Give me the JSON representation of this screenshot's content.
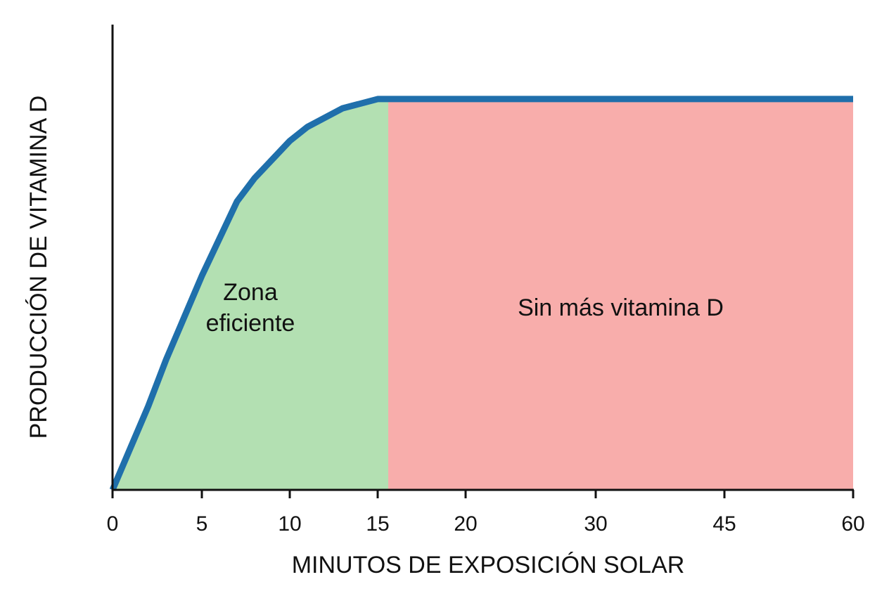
{
  "chart_data": {
    "type": "line",
    "x_label": "MINUTOS DE EXPOSICIÓN SOLAR",
    "y_label": "PRODUCCIÓN DE VITAMINA D",
    "x": [
      0,
      1,
      2,
      3,
      4,
      5,
      6,
      7,
      8,
      9,
      10,
      11,
      12,
      13,
      14,
      15,
      20,
      30,
      45,
      60
    ],
    "series": [
      {
        "color": "#1f6fab",
        "values": [
          0,
          9,
          18,
          28,
          37,
          46,
          54,
          62,
          67,
          71,
          75,
          78,
          80,
          82,
          83,
          84,
          84,
          84,
          84,
          84
        ]
      }
    ],
    "xlim": [
      0,
      60
    ],
    "xticks": [
      0,
      5,
      10,
      15,
      20,
      30,
      45,
      60
    ],
    "ylim": [
      0,
      100
    ],
    "zones": [
      {
        "label": "Zona eficiente",
        "color": "#b3e0b2",
        "x": [
          0,
          15.6
        ]
      },
      {
        "label": "Sin más vitamina D",
        "color": "#f8adab",
        "x": [
          15.6,
          60
        ]
      }
    ]
  }
}
